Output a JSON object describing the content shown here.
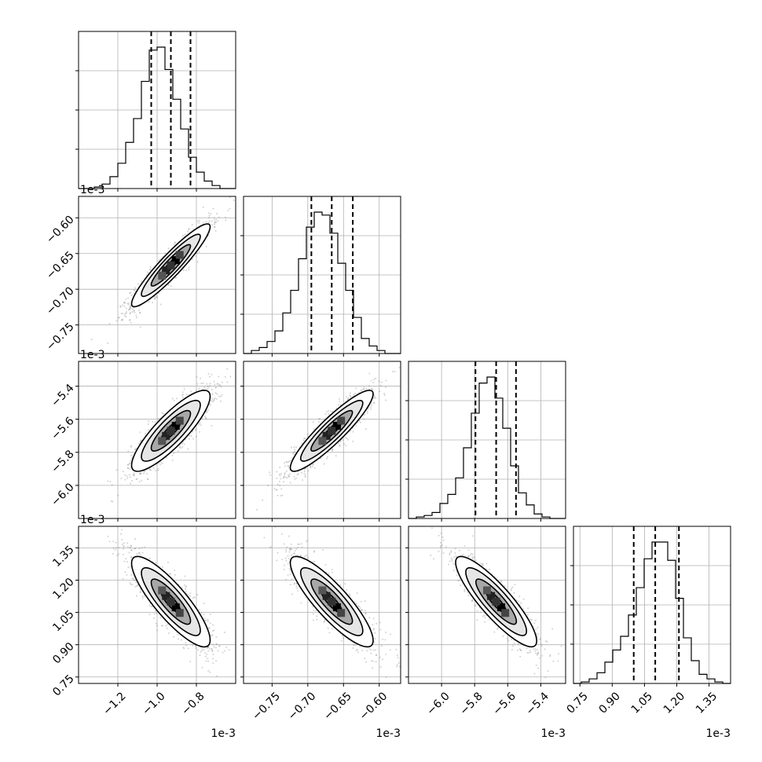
{
  "chart_data": {
    "type": "corner",
    "parameters": [
      {
        "range": [
          -1.4,
          -0.6
        ],
        "ticks": [
          -1.2,
          -1.0,
          -0.8
        ],
        "tick_labels": [
          "−1.2",
          "−1.0",
          "−0.8"
        ],
        "offset_text": "1e-3",
        "quantiles": [
          -1.03,
          -0.93,
          -0.83
        ],
        "hist_counts": [
          0,
          0,
          1,
          3,
          8,
          17,
          31,
          47,
          72,
          93,
          95,
          80,
          60,
          40,
          21,
          11,
          5,
          2,
          0,
          0
        ]
      },
      {
        "range": [
          -0.79,
          -0.57
        ],
        "ticks": [
          -0.75,
          -0.7,
          -0.65,
          -0.6
        ],
        "tick_labels": [
          "−0.75",
          "−0.70",
          "−0.65",
          "−0.60"
        ],
        "offset_text": "1e-3",
        "quantiles": [
          -0.695,
          -0.6665,
          -0.637
        ],
        "hist_counts": [
          0,
          2,
          4,
          8,
          15,
          27,
          42,
          63,
          84,
          94,
          92,
          80,
          60,
          42,
          24,
          10,
          5,
          2,
          0,
          0
        ]
      },
      {
        "range": [
          -6.2,
          -5.25
        ],
        "ticks": [
          -6.0,
          -5.8,
          -5.6,
          -5.4
        ],
        "tick_labels": [
          "−6.0",
          "−5.8",
          "−5.6",
          "−5.4"
        ],
        "offset_text": "1e-3",
        "quantiles": [
          -5.795,
          -5.67,
          -5.55
        ],
        "hist_counts": [
          0,
          1,
          2,
          4,
          10,
          16,
          27,
          47,
          70,
          90,
          94,
          80,
          60,
          35,
          17,
          9,
          3,
          1,
          0,
          0
        ]
      },
      {
        "range": [
          0.72,
          1.45
        ],
        "ticks": [
          0.75,
          0.9,
          1.05,
          1.2,
          1.35
        ],
        "tick_labels": [
          "0.75",
          "0.90",
          "1.05",
          "1.20",
          "1.35"
        ],
        "offset_text": "1e-3",
        "quantiles": [
          1.0,
          1.1,
          1.21
        ],
        "hist_counts": [
          0,
          1,
          3,
          7,
          14,
          22,
          31,
          45,
          63,
          82,
          93,
          93,
          81,
          56,
          30,
          15,
          6,
          3,
          1,
          0
        ]
      }
    ],
    "correlations": [
      [
        1.0,
        0.93,
        0.85,
        -0.85
      ],
      [
        0.93,
        1.0,
        0.91,
        -0.86
      ],
      [
        0.85,
        0.91,
        1.0,
        -0.87
      ],
      [
        -0.85,
        -0.86,
        -0.87,
        1.0
      ]
    ],
    "contour_levels_sigma": [
      0.5,
      1.0,
      1.5,
      2.0
    ],
    "grid": true,
    "colors": {
      "points": "#7f7f7f",
      "lines": "#000000",
      "grid": "#b0b0b0"
    }
  }
}
